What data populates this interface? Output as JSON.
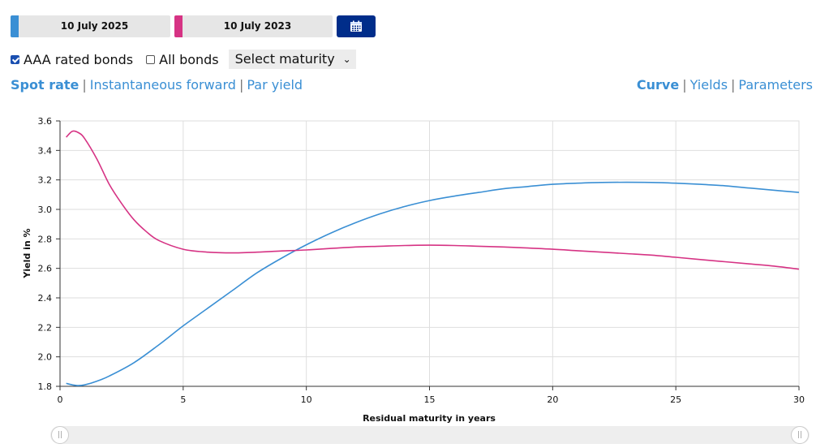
{
  "date_pickers": [
    {
      "label": "10 July 2025",
      "color": "#3a8fd4"
    },
    {
      "label": "10 July 2023",
      "color": "#d63384"
    }
  ],
  "calendar_icon": "calendar-icon",
  "filters": {
    "aaa_label": "AAA rated bonds",
    "aaa_checked": true,
    "all_label": "All bonds",
    "all_checked": false,
    "maturity_select": "Select maturity"
  },
  "left_tabs": [
    "Spot rate",
    "Instantaneous forward",
    "Par yield"
  ],
  "left_active": "Spot rate",
  "right_tabs": [
    "Curve",
    "Yields",
    "Parameters"
  ],
  "right_active": "Curve",
  "chart_data": {
    "type": "line",
    "xlabel": "Residual maturity in years",
    "ylabel": "Yield in %",
    "xlim": [
      0,
      30
    ],
    "ylim": [
      1.8,
      3.6
    ],
    "x_ticks": [
      "0",
      "5",
      "10",
      "15",
      "20",
      "25",
      "30"
    ],
    "y_ticks": [
      "1.8",
      "2.0",
      "2.2",
      "2.4",
      "2.6",
      "2.8",
      "3.0",
      "3.2",
      "3.4",
      "3.6"
    ],
    "grid": true,
    "series": [
      {
        "date": "10 July 2025",
        "color": "#3a8fd4",
        "x": [
          0.25,
          0.5,
          0.75,
          1,
          1.5,
          2,
          3,
          4,
          5,
          6,
          7,
          8,
          9,
          10,
          11,
          12,
          13,
          14,
          15,
          16,
          17,
          18,
          19,
          20,
          21,
          22,
          23,
          24,
          25,
          26,
          27,
          28,
          29,
          30
        ],
        "y": [
          1.82,
          1.81,
          1.805,
          1.81,
          1.835,
          1.87,
          1.96,
          2.08,
          2.21,
          2.33,
          2.45,
          2.57,
          2.67,
          2.76,
          2.84,
          2.91,
          2.97,
          3.02,
          3.06,
          3.09,
          3.115,
          3.14,
          3.155,
          3.17,
          3.178,
          3.183,
          3.184,
          3.183,
          3.178,
          3.17,
          3.16,
          3.145,
          3.13,
          3.115
        ]
      },
      {
        "date": "10 July 2023",
        "color": "#d63384",
        "x": [
          0.25,
          0.5,
          0.75,
          1,
          1.5,
          2,
          2.5,
          3,
          3.5,
          4,
          5,
          6,
          7,
          8,
          9,
          10,
          11,
          12,
          13,
          14,
          15,
          16,
          17,
          18,
          19,
          20,
          21,
          22,
          23,
          24,
          25,
          26,
          27,
          28,
          29,
          30
        ],
        "y": [
          3.49,
          3.53,
          3.52,
          3.48,
          3.34,
          3.17,
          3.04,
          2.93,
          2.85,
          2.79,
          2.73,
          2.71,
          2.705,
          2.71,
          2.718,
          2.725,
          2.735,
          2.745,
          2.75,
          2.755,
          2.757,
          2.755,
          2.75,
          2.745,
          2.738,
          2.73,
          2.72,
          2.71,
          2.7,
          2.69,
          2.675,
          2.66,
          2.645,
          2.63,
          2.615,
          2.595
        ]
      }
    ]
  }
}
